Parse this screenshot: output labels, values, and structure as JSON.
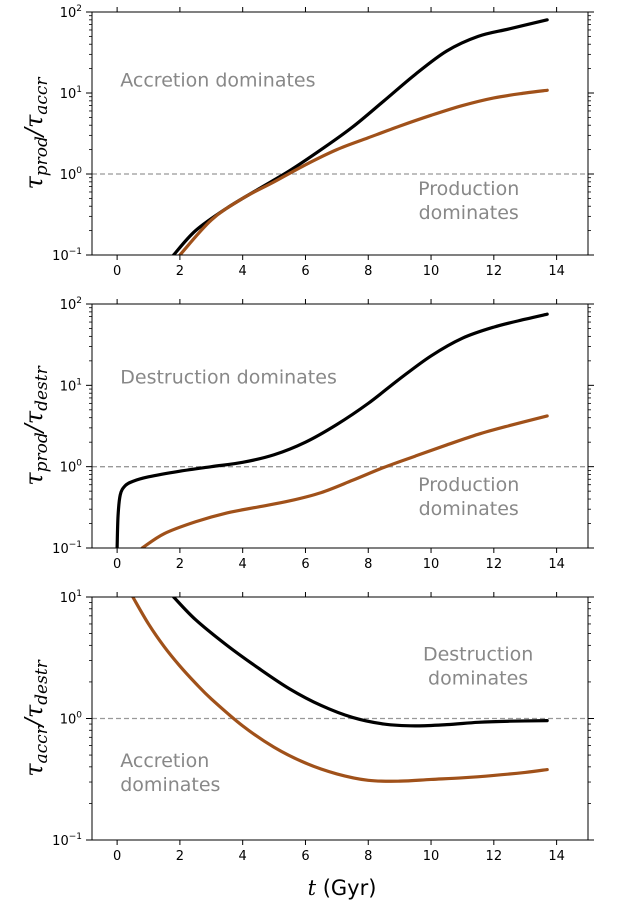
{
  "figure": {
    "xlabel_var": "t",
    "xlabel_unit": " (Gyr)"
  },
  "chart_data": [
    {
      "type": "line",
      "ylabel_main": "τ",
      "ylabel_sub1": "prod",
      "ylabel_sub2": "accr",
      "yscale": "log",
      "ylim": [
        0.1,
        100
      ],
      "xlim": [
        -0.8,
        15.0
      ],
      "xticks": [
        0,
        2,
        4,
        6,
        8,
        10,
        12,
        14
      ],
      "yticks": [
        {
          "value": 0.1,
          "label_base": "10",
          "label_exp": "−1"
        },
        {
          "value": 1,
          "label_base": "10",
          "label_exp": "0"
        },
        {
          "value": 10,
          "label_base": "10",
          "label_exp": "1"
        },
        {
          "value": 100,
          "label_base": "10",
          "label_exp": "2"
        }
      ],
      "hline": 1,
      "annotations": [
        {
          "lines": [
            "Accretion dominates"
          ],
          "x": 0.1,
          "y": 12,
          "anchor": "start"
        },
        {
          "lines": [
            "Production",
            "dominates"
          ],
          "x": 11.2,
          "y": 0.55,
          "anchor": "middle"
        }
      ],
      "series": [
        {
          "color": "#000000",
          "x": [
            1.8,
            2.5,
            3.5,
            4.5,
            5.5,
            6.5,
            7.5,
            8.5,
            9.5,
            10.5,
            11.5,
            12.5,
            13.7
          ],
          "y": [
            0.1,
            0.2,
            0.38,
            0.65,
            1.1,
            2.0,
            3.8,
            8.0,
            17,
            33,
            50,
            62,
            80
          ]
        },
        {
          "color": "#A0511A",
          "x": [
            2.0,
            3.0,
            4.0,
            5.0,
            6.0,
            7.0,
            8.0,
            9.0,
            10.0,
            11.0,
            12.0,
            13.0,
            13.7
          ],
          "y": [
            0.1,
            0.27,
            0.5,
            0.8,
            1.3,
            2.0,
            2.8,
            3.9,
            5.3,
            7.0,
            8.7,
            10.0,
            10.8
          ]
        }
      ]
    },
    {
      "type": "line",
      "ylabel_main": "τ",
      "ylabel_sub1": "prod",
      "ylabel_sub2": "destr",
      "yscale": "log",
      "ylim": [
        0.1,
        100
      ],
      "xlim": [
        -0.8,
        15.0
      ],
      "xticks": [
        0,
        2,
        4,
        6,
        8,
        10,
        12,
        14
      ],
      "yticks": [
        {
          "value": 0.1,
          "label_base": "10",
          "label_exp": "−1"
        },
        {
          "value": 1,
          "label_base": "10",
          "label_exp": "0"
        },
        {
          "value": 10,
          "label_base": "10",
          "label_exp": "1"
        },
        {
          "value": 100,
          "label_base": "10",
          "label_exp": "2"
        }
      ],
      "hline": 1,
      "annotations": [
        {
          "lines": [
            "Destruction dominates"
          ],
          "x": 0.1,
          "y": 10.5,
          "anchor": "start"
        },
        {
          "lines": [
            "Production",
            "dominates"
          ],
          "x": 11.2,
          "y": 0.5,
          "anchor": "middle"
        }
      ],
      "series": [
        {
          "color": "#000000",
          "x": [
            0.0,
            0.03,
            0.1,
            0.25,
            0.5,
            1.0,
            2.0,
            3.0,
            4.0,
            5.0,
            6.0,
            7.0,
            8.0,
            9.0,
            10.0,
            11.0,
            12.0,
            13.0,
            13.7
          ],
          "y": [
            0.1,
            0.25,
            0.45,
            0.58,
            0.66,
            0.75,
            0.88,
            1.0,
            1.13,
            1.4,
            2.0,
            3.3,
            6.0,
            12,
            23,
            38,
            52,
            65,
            75
          ]
        },
        {
          "color": "#A0511A",
          "x": [
            0.8,
            1.5,
            2.5,
            3.5,
            4.5,
            5.5,
            6.5,
            7.5,
            8.5,
            9.5,
            10.5,
            11.5,
            12.5,
            13.7
          ],
          "y": [
            0.1,
            0.15,
            0.21,
            0.27,
            0.32,
            0.38,
            0.48,
            0.68,
            0.98,
            1.35,
            1.85,
            2.5,
            3.2,
            4.2
          ]
        }
      ]
    },
    {
      "type": "line",
      "ylabel_main": "τ",
      "ylabel_sub1": "accr",
      "ylabel_sub2": "destr",
      "yscale": "log",
      "ylim": [
        0.1,
        10
      ],
      "xlim": [
        -0.8,
        15.0
      ],
      "xticks": [
        0,
        2,
        4,
        6,
        8,
        10,
        12,
        14
      ],
      "yticks": [
        {
          "value": 0.1,
          "label_base": "10",
          "label_exp": "−1"
        },
        {
          "value": 1,
          "label_base": "10",
          "label_exp": "0"
        },
        {
          "value": 10,
          "label_base": "10",
          "label_exp": "1"
        }
      ],
      "hline": 1,
      "annotations": [
        {
          "lines": [
            "Destruction",
            "dominates"
          ],
          "x": 11.5,
          "y": 3.0,
          "anchor": "middle"
        },
        {
          "lines": [
            "Accretion",
            "dominates"
          ],
          "x": 0.1,
          "y": 0.4,
          "anchor": "start"
        }
      ],
      "series": [
        {
          "color": "#000000",
          "x": [
            1.8,
            2.5,
            3.5,
            4.5,
            5.5,
            6.5,
            7.5,
            8.5,
            9.5,
            10.5,
            11.5,
            12.5,
            13.7
          ],
          "y": [
            10,
            6.5,
            4.0,
            2.6,
            1.75,
            1.28,
            1.02,
            0.9,
            0.87,
            0.89,
            0.93,
            0.95,
            0.96
          ]
        },
        {
          "color": "#A0511A",
          "x": [
            0.5,
            1.0,
            1.5,
            2.0,
            2.5,
            3.0,
            4.0,
            5.0,
            6.0,
            7.0,
            8.0,
            9.0,
            10.0,
            11.0,
            12.0,
            13.0,
            13.7
          ],
          "y": [
            10,
            6.0,
            3.9,
            2.7,
            1.95,
            1.45,
            0.87,
            0.58,
            0.43,
            0.35,
            0.31,
            0.305,
            0.315,
            0.325,
            0.34,
            0.36,
            0.38
          ]
        }
      ]
    }
  ]
}
